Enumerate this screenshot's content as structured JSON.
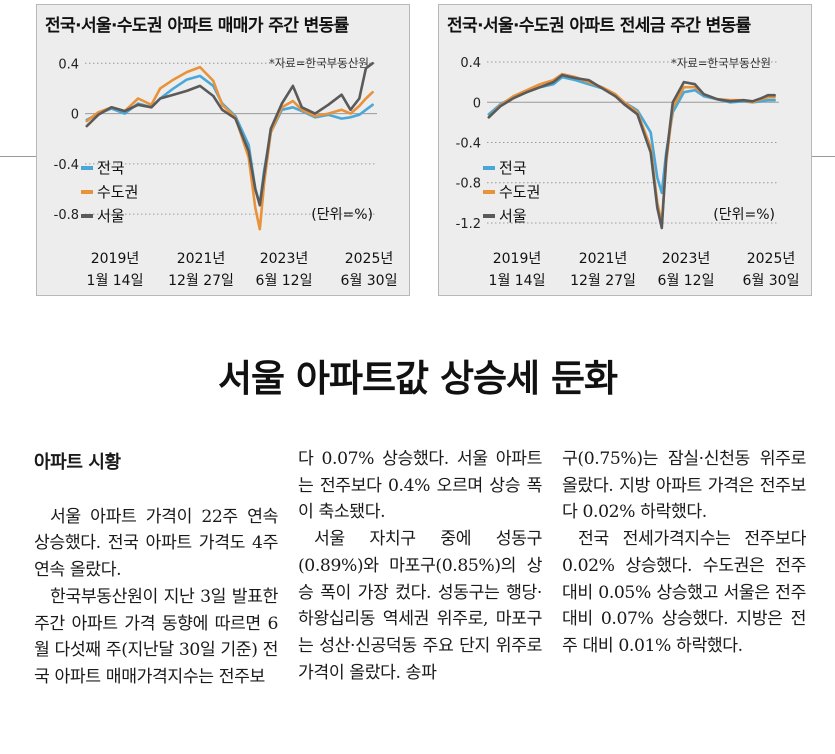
{
  "chart_data": [
    {
      "type": "line",
      "title": "전국·서울·수도권 아파트 매매가 주간 변동률",
      "source": "*자료=한국부동산원",
      "unit_label": "(단위=%)",
      "x_ticks": [
        {
          "year": "2019년",
          "date": "1월 14일"
        },
        {
          "year": "2021년",
          "date": "12월 27일"
        },
        {
          "year": "2023년",
          "date": "6월 12일"
        },
        {
          "year": "2025년",
          "date": "6월 30일"
        }
      ],
      "y_ticks": [
        "0.4",
        "0",
        "-0.4",
        "-0.8"
      ],
      "ylim": [
        -0.95,
        0.45
      ],
      "grid": "horizontal dotted",
      "legend_position": "left-middle",
      "colors": {
        "전국": "#4aa8d8",
        "수도권": "#e8923a",
        "서울": "#5a5a5a"
      },
      "x": [
        2019.04,
        2019.3,
        2019.6,
        2019.9,
        2020.2,
        2020.5,
        2020.7,
        2021.0,
        2021.3,
        2021.6,
        2021.9,
        2022.1,
        2022.4,
        2022.7,
        2022.85,
        2022.95,
        2023.05,
        2023.2,
        2023.45,
        2023.7,
        2023.9,
        2024.2,
        2024.5,
        2024.8,
        2025.0,
        2025.2,
        2025.35,
        2025.5
      ],
      "series": [
        {
          "name": "전국",
          "values": [
            -0.05,
            0.0,
            0.04,
            0.0,
            0.08,
            0.05,
            0.12,
            0.2,
            0.27,
            0.3,
            0.22,
            0.08,
            -0.02,
            -0.25,
            -0.6,
            -0.72,
            -0.45,
            -0.15,
            0.03,
            0.05,
            0.02,
            -0.03,
            -0.01,
            -0.04,
            -0.03,
            -0.01,
            0.03,
            0.07
          ]
        },
        {
          "name": "수도권",
          "values": [
            -0.06,
            0.01,
            0.05,
            0.02,
            0.12,
            0.07,
            0.2,
            0.27,
            0.33,
            0.37,
            0.26,
            0.07,
            -0.03,
            -0.35,
            -0.75,
            -0.92,
            -0.55,
            -0.15,
            0.05,
            0.1,
            0.03,
            -0.02,
            0.0,
            0.03,
            0.0,
            0.06,
            0.12,
            0.17
          ]
        },
        {
          "name": "서울",
          "values": [
            -0.1,
            -0.01,
            0.05,
            0.02,
            0.07,
            0.05,
            0.12,
            0.15,
            0.18,
            0.22,
            0.14,
            0.03,
            -0.04,
            -0.3,
            -0.6,
            -0.73,
            -0.48,
            -0.12,
            0.08,
            0.22,
            0.05,
            0.0,
            0.07,
            0.15,
            0.03,
            0.12,
            0.36,
            0.4
          ]
        }
      ]
    },
    {
      "type": "line",
      "title": "전국·서울·수도권 아파트 전세금 주간 변동률",
      "source": "*자료=한국부동산원",
      "unit_label": "(단위=%)",
      "x_ticks": [
        {
          "year": "2019년",
          "date": "1월 14일"
        },
        {
          "year": "2021년",
          "date": "12월 27일"
        },
        {
          "year": "2023년",
          "date": "6월 12일"
        },
        {
          "year": "2025년",
          "date": "6월 30일"
        }
      ],
      "y_ticks": [
        "0.4",
        "0",
        "-0.4",
        "-0.8",
        "-1.2"
      ],
      "ylim": [
        -1.3,
        0.45
      ],
      "grid": "horizontal dotted",
      "legend_position": "left-middle",
      "colors": {
        "전국": "#4aa8d8",
        "수도권": "#e8923a",
        "서울": "#5a5a5a"
      },
      "x": [
        2019.04,
        2019.3,
        2019.6,
        2019.9,
        2020.2,
        2020.5,
        2020.7,
        2021.0,
        2021.3,
        2021.6,
        2021.9,
        2022.1,
        2022.4,
        2022.7,
        2022.85,
        2022.95,
        2023.05,
        2023.2,
        2023.45,
        2023.7,
        2023.9,
        2024.2,
        2024.5,
        2024.8,
        2025.0,
        2025.2,
        2025.35,
        2025.5
      ],
      "series": [
        {
          "name": "전국",
          "values": [
            -0.12,
            -0.02,
            0.05,
            0.1,
            0.15,
            0.18,
            0.25,
            0.22,
            0.18,
            0.14,
            0.07,
            0.0,
            -0.08,
            -0.3,
            -0.75,
            -0.9,
            -0.5,
            -0.1,
            0.1,
            0.12,
            0.06,
            0.03,
            0.0,
            0.01,
            0.0,
            0.01,
            0.02,
            0.02
          ]
        },
        {
          "name": "수도권",
          "values": [
            -0.15,
            -0.03,
            0.06,
            0.12,
            0.18,
            0.22,
            0.28,
            0.25,
            0.2,
            0.15,
            0.08,
            0.0,
            -0.1,
            -0.45,
            -1.0,
            -1.2,
            -0.6,
            -0.05,
            0.15,
            0.15,
            0.08,
            0.03,
            0.02,
            0.02,
            0.0,
            0.03,
            0.05,
            0.05
          ]
        },
        {
          "name": "서울",
          "values": [
            -0.15,
            -0.04,
            0.04,
            0.1,
            0.15,
            0.2,
            0.27,
            0.24,
            0.22,
            0.14,
            0.06,
            -0.02,
            -0.12,
            -0.5,
            -1.05,
            -1.25,
            -0.55,
            0.0,
            0.2,
            0.18,
            0.08,
            0.03,
            0.01,
            0.02,
            0.01,
            0.04,
            0.07,
            0.07
          ]
        }
      ]
    }
  ],
  "headline": "서울 아파트값 상승세 둔화",
  "article": {
    "section_title": "아파트 시황",
    "col1": [
      "서울 아파트 가격이 22주 연속 상승했다. 전국 아파트 가격도 4주 연속 올랐다.",
      "한국부동산원이 지난 3일 발표한 주간 아파트 가격 동향에 따르면 6월 다섯째 주(지난달 30일 기준) 전국 아파트 매매가격지수는 전주보"
    ],
    "col2_cont": "다 0.07% 상승했다. 서울 아파트는 전주보다 0.4% 오르며 상승 폭이 축소됐다.",
    "col2": [
      "서울 자치구 중에 성동구(0.89%)와 마포구(0.85%)의 상승 폭이 가장 컸다. 성동구는 행당·하왕십리동 역세권 위주로, 마포구는 성산·신공덕동 주요 단지 위주로 가격이 올랐다. 송파"
    ],
    "col3_cont": "구(0.75%)는 잠실·신천동 위주로 올랐다. 지방 아파트 가격은 전주보다 0.02% 하락했다.",
    "col3": [
      "전국 전세가격지수는 전주보다 0.02% 상승했다. 수도권은 전주 대비 0.05% 상승했고 서울은 전주 대비 0.07% 상승했다. 지방은 전주 대비 0.01% 하락했다."
    ]
  }
}
